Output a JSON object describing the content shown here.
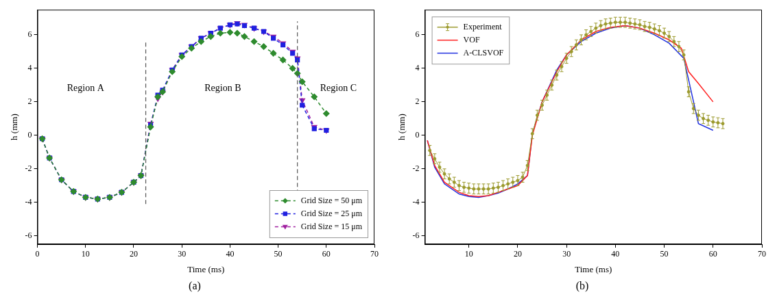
{
  "chart_data": [
    {
      "type": "line",
      "panel_label": "(a)",
      "x_label": "Time (ms)",
      "y_label": "h (mm)",
      "xlim": [
        0,
        70
      ],
      "xticks": [
        0,
        10,
        20,
        30,
        40,
        50,
        60,
        70
      ],
      "ylim": [
        -6.5,
        7.5
      ],
      "yticks": [
        -6,
        -4,
        -2,
        0,
        2,
        4,
        6
      ],
      "grid": false,
      "legend": "lower right",
      "x": [
        1,
        2.5,
        5,
        7.5,
        10,
        12.5,
        15,
        17.5,
        20,
        21.5,
        23.5,
        25,
        26,
        28,
        30,
        32,
        34,
        36,
        38,
        40,
        41.5,
        43,
        45,
        47,
        49,
        51,
        53,
        54,
        55,
        57.5,
        60
      ],
      "series": [
        {
          "name": "Grid Size = 50 μm",
          "color": "#2e8b2e",
          "marker": "diamond",
          "line_style": "dashed",
          "values": [
            -0.2,
            -1.35,
            -2.65,
            -3.35,
            -3.7,
            -3.8,
            -3.7,
            -3.4,
            -2.8,
            -2.4,
            0.5,
            2.3,
            2.6,
            3.8,
            4.7,
            5.2,
            5.6,
            5.9,
            6.1,
            6.15,
            6.1,
            5.9,
            5.6,
            5.3,
            4.9,
            4.5,
            4.0,
            3.7,
            3.2,
            2.3,
            1.3
          ]
        },
        {
          "name": "Grid Size = 25 μm",
          "color": "#2020e0",
          "marker": "square",
          "line_style": "dashed",
          "values": [
            -0.2,
            -1.35,
            -2.65,
            -3.35,
            -3.7,
            -3.8,
            -3.7,
            -3.4,
            -2.8,
            -2.4,
            0.6,
            2.4,
            2.7,
            3.9,
            4.8,
            5.3,
            5.8,
            6.1,
            6.4,
            6.6,
            6.65,
            6.55,
            6.4,
            6.2,
            5.8,
            5.4,
            4.9,
            4.5,
            1.8,
            0.4,
            0.3
          ]
        },
        {
          "name": "Grid Size = 15 μm",
          "color": "#a020a0",
          "marker": "triangle_down",
          "line_style": "dashed",
          "values": [
            -0.2,
            -1.35,
            -2.65,
            -3.35,
            -3.7,
            -3.8,
            -3.7,
            -3.4,
            -2.8,
            -2.4,
            0.7,
            2.2,
            2.6,
            3.9,
            4.8,
            5.3,
            5.8,
            6.1,
            6.4,
            6.6,
            6.7,
            6.6,
            6.4,
            6.2,
            5.9,
            5.5,
            5.0,
            4.6,
            2.1,
            0.5,
            0.3
          ]
        }
      ],
      "vlines": [
        {
          "x": 22.5,
          "ymin": -4.1,
          "ymax": 5.6
        },
        {
          "x": 54,
          "ymin": -4.3,
          "ymax": 6.8
        }
      ],
      "annotations": [
        {
          "text": "Region A",
          "x": 10,
          "y": 2.8
        },
        {
          "text": "Region B",
          "x": 38.5,
          "y": 2.8
        },
        {
          "text": "Region C",
          "x": 62.5,
          "y": 2.8
        }
      ]
    },
    {
      "type": "line",
      "panel_label": "(b)",
      "x_label": "Time (ms)",
      "y_label": "h (mm)",
      "xlim": [
        1,
        70
      ],
      "xticks": [
        10,
        20,
        30,
        40,
        50,
        60,
        70
      ],
      "ylim": [
        -6.5,
        7.5
      ],
      "yticks": [
        -6,
        -4,
        -2,
        0,
        2,
        4,
        6
      ],
      "grid": false,
      "legend": "upper left",
      "series": [
        {
          "name": "Experiment",
          "color": "#9c9a2e",
          "marker": "circle",
          "line_style": "solid",
          "x": [
            2,
            3,
            4,
            5,
            6,
            7,
            8,
            9,
            10,
            11,
            12,
            13,
            14,
            15,
            16,
            17,
            18,
            19,
            20,
            21,
            22,
            23,
            24,
            25,
            26,
            27,
            28,
            29,
            30,
            31,
            32,
            33,
            34,
            35,
            36,
            37,
            38,
            39,
            40,
            41,
            42,
            43,
            44,
            45,
            46,
            47,
            48,
            49,
            50,
            51,
            52,
            53,
            54,
            55,
            56,
            57,
            58,
            59,
            60,
            61,
            62
          ],
          "values": [
            -0.9,
            -1.4,
            -1.9,
            -2.3,
            -2.6,
            -2.8,
            -3.0,
            -3.1,
            -3.15,
            -3.2,
            -3.2,
            -3.2,
            -3.2,
            -3.15,
            -3.1,
            -3.0,
            -2.9,
            -2.8,
            -2.7,
            -2.5,
            -1.8,
            0.1,
            1.2,
            1.8,
            2.4,
            3.0,
            3.6,
            4.1,
            4.6,
            5.0,
            5.4,
            5.7,
            6.0,
            6.2,
            6.4,
            6.55,
            6.65,
            6.7,
            6.75,
            6.75,
            6.75,
            6.7,
            6.65,
            6.6,
            6.5,
            6.45,
            6.35,
            6.25,
            6.1,
            5.9,
            5.6,
            5.3,
            4.8,
            2.6,
            1.6,
            1.2,
            1.0,
            0.9,
            0.8,
            0.75,
            0.7
          ],
          "errors": [
            0.3,
            0.3,
            0.3,
            0.3,
            0.3,
            0.3,
            0.3,
            0.3,
            0.3,
            0.3,
            0.3,
            0.3,
            0.3,
            0.3,
            0.3,
            0.3,
            0.3,
            0.3,
            0.3,
            0.3,
            0.3,
            0.3,
            0.3,
            0.3,
            0.3,
            0.3,
            0.3,
            0.3,
            0.3,
            0.3,
            0.3,
            0.3,
            0.3,
            0.3,
            0.3,
            0.3,
            0.3,
            0.3,
            0.3,
            0.3,
            0.3,
            0.3,
            0.3,
            0.3,
            0.3,
            0.3,
            0.3,
            0.3,
            0.3,
            0.3,
            0.3,
            0.3,
            0.3,
            0.3,
            0.3,
            0.3,
            0.3,
            0.3,
            0.3,
            0.3,
            0.3
          ]
        },
        {
          "name": "VOF",
          "color": "#ff2020",
          "marker": "none",
          "line_style": "solid",
          "x": [
            1.5,
            3,
            5,
            8,
            10,
            12,
            14,
            16,
            18,
            20,
            22,
            23,
            25,
            28,
            30,
            33,
            36,
            39,
            42,
            45,
            48,
            51,
            53.5,
            55,
            57,
            60
          ],
          "values": [
            -0.3,
            -1.8,
            -2.8,
            -3.4,
            -3.6,
            -3.65,
            -3.6,
            -3.4,
            -3.2,
            -3.0,
            -2.4,
            0.0,
            2.0,
            3.8,
            4.8,
            5.7,
            6.2,
            6.45,
            6.55,
            6.4,
            6.1,
            5.7,
            5.2,
            3.8,
            3.1,
            2.0
          ]
        },
        {
          "name": "A-CLSVOF",
          "color": "#2030e0",
          "marker": "none",
          "line_style": "solid",
          "x": [
            1.5,
            3,
            5,
            8,
            10,
            12,
            14,
            16,
            18,
            20,
            22,
            23,
            25,
            28,
            30,
            33,
            36,
            39,
            42,
            45,
            48,
            51,
            54,
            57,
            60
          ],
          "values": [
            -0.3,
            -1.9,
            -2.9,
            -3.5,
            -3.65,
            -3.7,
            -3.6,
            -3.45,
            -3.2,
            -2.9,
            -2.4,
            0.1,
            2.0,
            3.9,
            4.8,
            5.6,
            6.1,
            6.4,
            6.55,
            6.4,
            6.0,
            5.5,
            4.6,
            0.7,
            0.3
          ]
        }
      ]
    }
  ]
}
